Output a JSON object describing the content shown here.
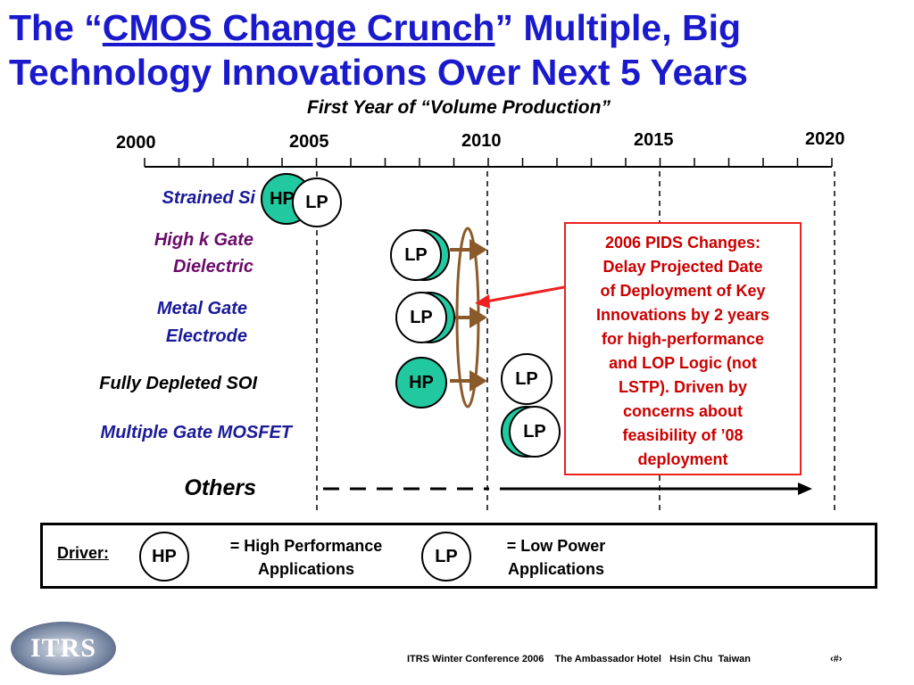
{
  "title": {
    "prefix": "The “",
    "underlined": "CMOS Change Crunch",
    "rest": "” Multiple, Big Technology Innovations Over Next 5 Years"
  },
  "subtitle": "First Year of “Volume Production”",
  "years": [
    "2000",
    "2005",
    "2010",
    "2015",
    "2020"
  ],
  "rows": {
    "strained_si": "Strained Si",
    "high_k_1": "High k Gate",
    "high_k_2": "Dielectric",
    "metal_gate_1": "Metal Gate",
    "metal_gate_2": "Electrode",
    "fdsoi": "Fully Depleted SOI",
    "mugfet": "Multiple Gate MOSFET",
    "others": "Others"
  },
  "badges": {
    "hp": "HP",
    "lp": "LP"
  },
  "note": {
    "lines": [
      "2006 PIDS Changes:",
      "Delay Projected Date",
      "of Deployment of Key",
      "Innovations by 2 years",
      "for high-performance",
      "and LOP Logic (not",
      "LSTP).  Driven by",
      "concerns about",
      "feasibility of ’08",
      "deployment"
    ]
  },
  "legend": {
    "driver": "Driver:",
    "hp": "HP",
    "hp_text_1": "= High Performance",
    "hp_text_2": "Applications",
    "lp": "LP",
    "lp_text_1": "= Low Power",
    "lp_text_2": "Applications"
  },
  "footer": "ITRS Winter Conference 2006    The Ambassador Hotel   Hsin Chu  Taiwan",
  "page_number": "‹#›",
  "logo_text": "ITRS",
  "colors": {
    "title": "#1a1acc",
    "hp_fill": "#22c9a0",
    "note_red": "#cc0000",
    "arrow_brown": "#8b5a2b"
  }
}
